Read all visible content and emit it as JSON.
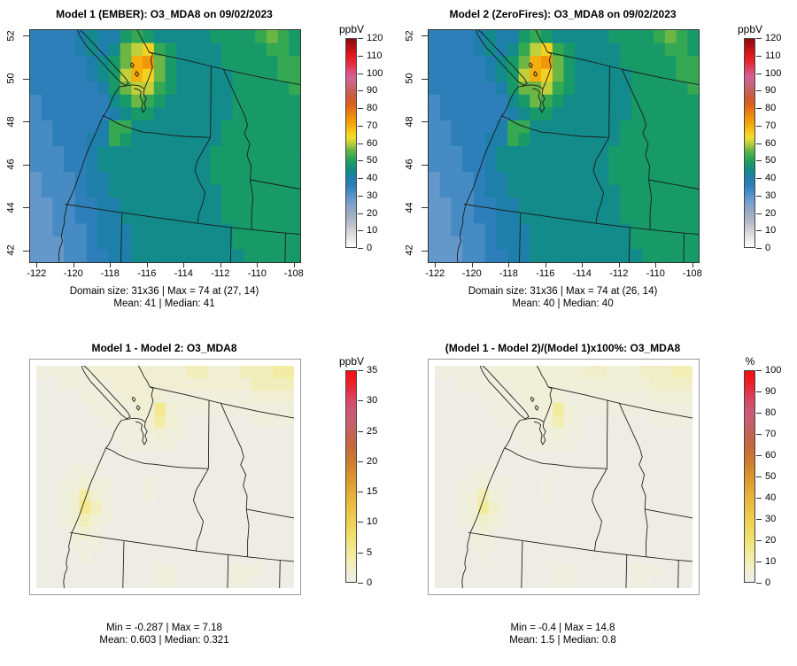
{
  "axes": {
    "x_ticks": [
      "-122",
      "-120",
      "-118",
      "-116",
      "-114",
      "-112",
      "-110",
      "-108"
    ],
    "y_ticks": [
      "42",
      "44",
      "46",
      "48",
      "50",
      "52"
    ],
    "x_label_range": [
      -122.4,
      -107.7
    ],
    "y_label_range": [
      41.5,
      52.3
    ]
  },
  "panels": [
    {
      "title": "Model 1 (EMBER): O3_MDA8 on 09/02/2023",
      "caption1": "Domain size: 31x36 | Max = 74 at (27, 14)",
      "caption2": "Mean: 41 |  Median: 41",
      "cb_label": "ppbV",
      "cb_max": 120,
      "cb_ticks": [
        0,
        10,
        20,
        30,
        40,
        50,
        60,
        70,
        80,
        90,
        100,
        110,
        120
      ],
      "has_axes": true,
      "data_index": 0
    },
    {
      "title": "Model 2 (ZeroFires): O3_MDA8 on 09/02/2023",
      "caption1": "Domain size: 31x36 | Max = 74 at (26, 14)",
      "caption2": "Mean: 40 |  Median: 40",
      "cb_label": "ppbV",
      "cb_max": 120,
      "cb_ticks": [
        0,
        10,
        20,
        30,
        40,
        50,
        60,
        70,
        80,
        90,
        100,
        110,
        120
      ],
      "has_axes": true,
      "data_index": 1
    },
    {
      "title": "Model 1 - Model 2: O3_MDA8",
      "caption1": "Min = -0.287 | Max = 7.18",
      "caption2": "Mean: 0.603 |  Median: 0.321",
      "cb_label": "ppbV",
      "cb_max": 35,
      "cb_ticks": [
        0,
        5,
        10,
        15,
        20,
        25,
        30,
        35
      ],
      "has_axes": false,
      "data_index": 2
    },
    {
      "title": "(Model 1 - Model 2)/(Model 1)x100%: O3_MDA8",
      "caption1": "Min = -0.4 | Max = 14.8",
      "caption2": "Mean: 1.5 |  Median: 0.8",
      "cb_label": "%",
      "cb_max": 100,
      "cb_ticks": [
        0,
        10,
        20,
        30,
        40,
        50,
        60,
        70,
        80,
        90,
        100
      ],
      "has_axes": false,
      "data_index": 3
    }
  ],
  "colormaps": {
    "o3": {
      "scale": "absolute",
      "domain_max": 120,
      "stops": [
        [
          0,
          "#fefefe"
        ],
        [
          5,
          "#e8e8e8"
        ],
        [
          10,
          "#cfd0d2"
        ],
        [
          15,
          "#b0b9c4"
        ],
        [
          20,
          "#9aabc4"
        ],
        [
          25,
          "#7da0cb"
        ],
        [
          30,
          "#5593c9"
        ],
        [
          35,
          "#2f7fbc"
        ],
        [
          40,
          "#1f7fab"
        ],
        [
          44,
          "#138b8b"
        ],
        [
          48,
          "#189a68"
        ],
        [
          52,
          "#35a852"
        ],
        [
          56,
          "#6cb646"
        ],
        [
          60,
          "#c0cf3c"
        ],
        [
          63,
          "#eedd30"
        ],
        [
          66,
          "#f7cd1c"
        ],
        [
          70,
          "#f6ae0c"
        ],
        [
          74,
          "#f0960a"
        ],
        [
          78,
          "#e87c10"
        ],
        [
          82,
          "#dd611e"
        ],
        [
          86,
          "#cf5936"
        ],
        [
          90,
          "#c76057"
        ],
        [
          94,
          "#cb6480"
        ],
        [
          98,
          "#d55f95"
        ],
        [
          102,
          "#dd4a6e"
        ],
        [
          106,
          "#e52b3c"
        ],
        [
          110,
          "#e31a1e"
        ],
        [
          114,
          "#c41217"
        ],
        [
          118,
          "#9c0d11"
        ],
        [
          120,
          "#8b0c0f"
        ]
      ]
    },
    "diff": {
      "scale": "normalized",
      "domain_max": 1,
      "stops": [
        [
          0,
          "#eeede7"
        ],
        [
          0.05,
          "#f1efd4"
        ],
        [
          0.1,
          "#f2eeb2"
        ],
        [
          0.16,
          "#f1e88d"
        ],
        [
          0.22,
          "#f0df68"
        ],
        [
          0.29,
          "#eed052"
        ],
        [
          0.36,
          "#eabf40"
        ],
        [
          0.43,
          "#e3ab35"
        ],
        [
          0.5,
          "#d9942e"
        ],
        [
          0.57,
          "#cd7c2f"
        ],
        [
          0.64,
          "#c56a3c"
        ],
        [
          0.7,
          "#c46253"
        ],
        [
          0.76,
          "#c76070"
        ],
        [
          0.82,
          "#ce5576"
        ],
        [
          0.87,
          "#d84560"
        ],
        [
          0.92,
          "#e42b3a"
        ],
        [
          0.96,
          "#f01a1f"
        ],
        [
          1,
          "#f50f12"
        ]
      ]
    }
  },
  "chart_data": [
    {
      "type": "heatmap",
      "title": "Model 1 (EMBER): O3_MDA8 on 09/02/2023",
      "units": "ppbV",
      "zlim": [
        0,
        120
      ],
      "x_range_lon": [
        -122.4,
        -107.7
      ],
      "y_range_lat": [
        41.5,
        52.3
      ],
      "domain_size": "31x36",
      "max": 74,
      "max_at": [
        27,
        14
      ],
      "mean": 41,
      "median": 41,
      "colormap": "o3",
      "grid_code_values": {
        "1": 28,
        "2": 32,
        "3": 36,
        "4": 40,
        "5": 44,
        "6": 48,
        "7": 52,
        "8": 56,
        "9": 60,
        "A": 65,
        "B": 70,
        "C": 74
      },
      "grid_rows": [
        "333345446765555566667876",
        "3333454589A7655556666776",
        "333334568BC8655556666677",
        "333334569BA8655555666677",
        "333333468997655555666667",
        "233333356876555555666666",
        "233333345665555555666666",
        "223333477555555556666666",
        "223334476555555556666666",
        "222334555555555566666666",
        "222334555555555566666666",
        "122234455555555566666666",
        "122234455555555556666666",
        "112233445555555556666666",
        "112233445555555556666666",
        "112223444555555555666666",
        "111223444555555555666666",
        "111223344555555555566666"
      ]
    },
    {
      "type": "heatmap",
      "title": "Model 2 (ZeroFires): O3_MDA8 on 09/02/2023",
      "units": "ppbV",
      "zlim": [
        0,
        120
      ],
      "x_range_lon": [
        -122.4,
        -107.7
      ],
      "y_range_lat": [
        41.5,
        52.3
      ],
      "domain_size": "31x36",
      "max": 74,
      "max_at": [
        26,
        14
      ],
      "mean": 40,
      "median": 40,
      "colormap": "o3",
      "grid_code_values": {
        "1": 28,
        "2": 32,
        "3": 36,
        "4": 40,
        "5": 44,
        "6": 48,
        "7": 52,
        "8": 56,
        "9": 60,
        "A": 65,
        "B": 70,
        "C": 74
      },
      "grid_rows": [
        "333345446765555566667876",
        "3333454579A7655556666776",
        "333334568BC8655556666677",
        "333334569BA8655555666677",
        "333333468897655555666667",
        "233333356876555555666666",
        "233333345665555555666666",
        "223333477555555556666666",
        "223334476555555556666666",
        "222334555555555566666666",
        "222334555555555566666666",
        "122234455555555566666666",
        "122234455555555556666666",
        "112233445555555556666666",
        "112233445555555556666666",
        "112223444555555555666666",
        "111223444555555555666666",
        "111223344555555555566666"
      ]
    },
    {
      "type": "heatmap",
      "title": "Model 1 - Model 2: O3_MDA8",
      "units": "ppbV",
      "zlim": [
        0,
        35
      ],
      "x_range_lon": [
        -122.4,
        -107.7
      ],
      "y_range_lat": [
        41.5,
        52.3
      ],
      "min": -0.287,
      "max": 7.18,
      "mean": 0.603,
      "median": 0.321,
      "colormap": "diff",
      "grid_code_values": {
        "0": 0.2,
        "1": 0.9,
        "2": 1.8,
        "3": 3,
        "4": 4.3,
        "5": 5.5
      },
      "grid_rows": [
        "111112222222223322233344",
        "001111122222222222223333",
        "000011112222111111112222",
        "000001111225211111111111",
        "000000111124210000001111",
        "000000011112110000000000",
        "000000001111100000000000",
        "000000000000000000000000",
        "000111000000000000000000",
        "001121100010000000000000",
        "001242100010000000000000",
        "001253100000000000000000",
        "001232100000000000000000",
        "000121000000000000000000",
        "000111000000000000000000",
        "000010000000000000000000",
        "000000000001100000111000",
        "000000000001100000110000"
      ]
    },
    {
      "type": "heatmap",
      "title": "(Model 1 - Model 2)/(Model 1)x100%: O3_MDA8",
      "units": "%",
      "zlim": [
        0,
        100
      ],
      "x_range_lon": [
        -122.4,
        -107.7
      ],
      "y_range_lat": [
        41.5,
        52.3
      ],
      "min": -0.4,
      "max": 14.8,
      "mean": 1.5,
      "median": 0.8,
      "colormap": "diff",
      "grid_code_values": {
        "0": 0.5,
        "1": 2,
        "2": 4,
        "3": 6.5,
        "4": 9.5,
        "5": 13.5
      },
      "grid_rows": [
        "111112222222223322233344",
        "001111122222222222223333",
        "000011112222111111112222",
        "000001111225211111111111",
        "000000111124210000001111",
        "000000011112110000000000",
        "000000001111100000000000",
        "000000000000000000000000",
        "000111000000000000000000",
        "001121100010000000000000",
        "001242100010000000000000",
        "001253100000000000000000",
        "001232100000000000000000",
        "000121000000000000000000",
        "000111000000000000000000",
        "000010000000000000000000",
        "000000000001100000111000",
        "000000000001100000110000"
      ]
    }
  ]
}
